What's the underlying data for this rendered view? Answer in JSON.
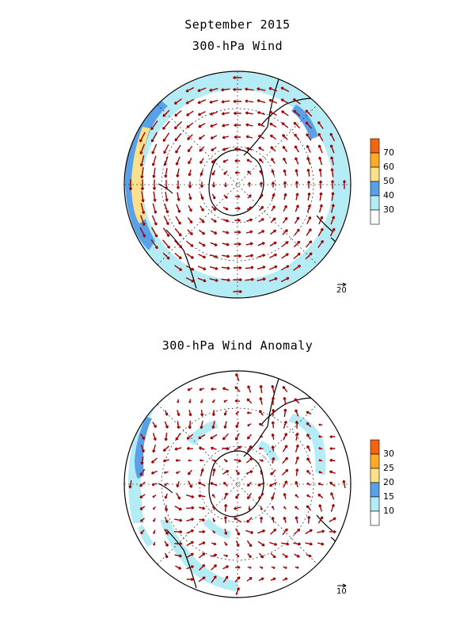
{
  "header": {
    "title": "September 2015",
    "panel1_title": "300-hPa Wind",
    "panel2_title": "300-hPa Wind Anomaly"
  },
  "panels": [
    {
      "id": "wind",
      "reference_vector_label": "20",
      "colorbar": {
        "labels": [
          "30",
          "40",
          "50",
          "60",
          "70"
        ],
        "colors": [
          "#ffffff",
          "#b4ecf5",
          "#5aa0e6",
          "#fde08a",
          "#ffaa28",
          "#f06414"
        ]
      }
    },
    {
      "id": "anomaly",
      "reference_vector_label": "10",
      "colorbar": {
        "labels": [
          "10",
          "15",
          "20",
          "25",
          "30"
        ],
        "colors": [
          "#ffffff",
          "#b4ecf5",
          "#5aa0e6",
          "#fde08a",
          "#ffaa28",
          "#f06414"
        ]
      }
    }
  ],
  "style": {
    "vector_color": "#a00000",
    "coast_color": "#000000",
    "grid_color": "#000000"
  }
}
